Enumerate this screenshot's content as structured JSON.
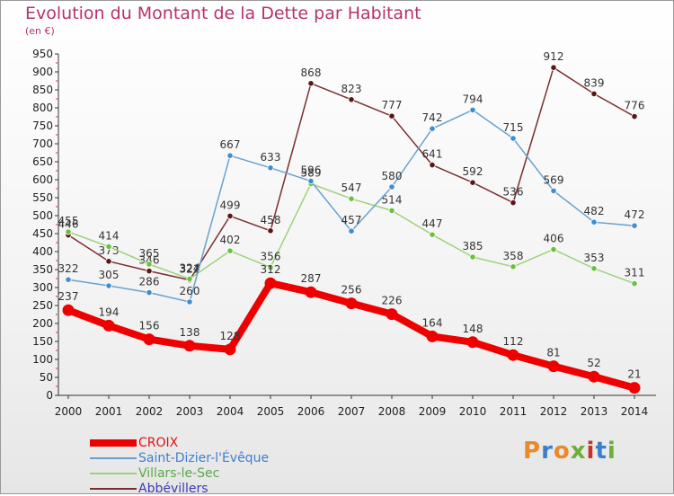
{
  "header": {
    "title": "Evolution du Montant de la Dette par Habitant",
    "subtitle": "(en €)"
  },
  "logo": {
    "text": "Proxiti",
    "colors": [
      "#e8892a",
      "#3a7fc8",
      "#e8892a",
      "#6cae3a",
      "#c8322a",
      "#3a7fc8",
      "#6cae3a"
    ]
  },
  "chart_data": {
    "type": "line",
    "title": "Evolution du Montant de la Dette par Habitant",
    "subtitle": "(en €)",
    "xlabel": "",
    "ylabel": "",
    "ylim": [
      0,
      950
    ],
    "ytick_step": 50,
    "grid": false,
    "legend_position": "bottom-left",
    "x": [
      "2000",
      "2001",
      "2002",
      "2003",
      "2004",
      "2005",
      "2006",
      "2007",
      "2008",
      "2009",
      "2010",
      "2011",
      "2012",
      "2013",
      "2014"
    ],
    "series": [
      {
        "name": "CROIX",
        "color": "#ee0000",
        "values": [
          237,
          194,
          156,
          138,
          128,
          312,
          287,
          256,
          226,
          164,
          148,
          112,
          81,
          52,
          21
        ]
      },
      {
        "name": "Saint-Dizier-l'Évêque",
        "color": "#6aa2cc",
        "marker": "#3f8fd0",
        "values": [
          322,
          305,
          286,
          260,
          667,
          633,
          596,
          457,
          580,
          742,
          794,
          715,
          569,
          482,
          472
        ]
      },
      {
        "name": "Villars-le-Sec",
        "color": "#9ed27a",
        "marker": "#6cc040",
        "values": [
          455,
          414,
          365,
          324,
          402,
          356,
          589,
          547,
          514,
          447,
          385,
          358,
          406,
          353,
          311
        ]
      },
      {
        "name": "Abbévillers",
        "color": "#7a2e2e",
        "marker": "#5a1616",
        "values": [
          446,
          373,
          346,
          321,
          499,
          458,
          868,
          823,
          777,
          641,
          592,
          536,
          912,
          839,
          776
        ]
      }
    ]
  }
}
